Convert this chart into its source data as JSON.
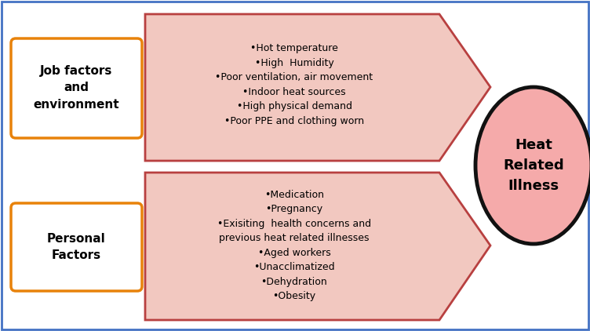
{
  "box1_label": "Job factors\nand\nenvironment",
  "box2_label": "Personal\nFactors",
  "box_color": "#E8820A",
  "arrow_fill": "#F2C8C0",
  "arrow_edge": "#B84040",
  "arrow_lw": 2.0,
  "circle_fill": "#F5AAAA",
  "circle_edge": "#111111",
  "circle_lw": 3.5,
  "circle_label": "Heat\nRelated\nIllness",
  "fig_border_color": "#4472C4",
  "box1_items": "•Hot temperature\n•High  Humidity\n•Poor ventilation, air movement\n•Indoor heat sources\n•High physical demand\n•Poor PPE and clothing worn",
  "box2_items": "•Medication\n•Pregnancy\n•Exisiting  health concerns and\nprevious heat related illnesses\n•Aged workers\n•Unacclimatized\n•Dehydration\n•Obesity"
}
